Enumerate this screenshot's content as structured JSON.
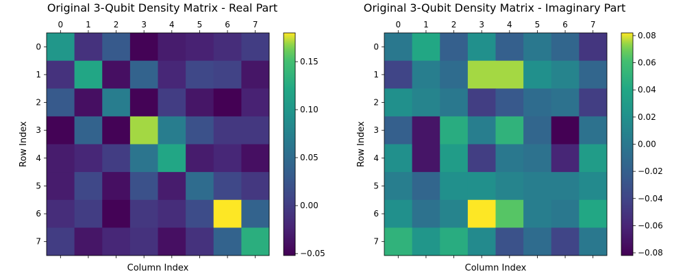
{
  "chart_data": [
    {
      "type": "heatmap",
      "title": "Original 3-Qubit Density Matrix - Real Part",
      "xlabel": "Column Index",
      "ylabel": "Row Index",
      "x_ticks": [
        "0",
        "1",
        "2",
        "3",
        "4",
        "5",
        "6",
        "7"
      ],
      "y_ticks": [
        "0",
        "1",
        "2",
        "3",
        "4",
        "5",
        "6",
        "7"
      ],
      "colormap": "viridis",
      "vmin": -0.052,
      "vmax": 0.18,
      "colorbar_ticks": [
        -0.05,
        0.0,
        0.05,
        0.1,
        0.15
      ],
      "colorbar_tick_labels": [
        "−0.05",
        "0.00",
        "0.05",
        "0.10",
        "0.15"
      ],
      "values": [
        [
          0.1,
          -0.01,
          0.03,
          -0.05,
          -0.03,
          -0.025,
          -0.015,
          0.0
        ],
        [
          -0.01,
          0.12,
          -0.04,
          0.04,
          -0.02,
          0.01,
          0.005,
          -0.035
        ],
        [
          0.03,
          -0.04,
          0.07,
          -0.05,
          0.0,
          -0.035,
          -0.052,
          -0.025
        ],
        [
          -0.05,
          0.04,
          -0.05,
          0.17,
          0.07,
          0.02,
          -0.005,
          -0.005
        ],
        [
          -0.03,
          -0.02,
          0.0,
          0.06,
          0.12,
          -0.03,
          -0.02,
          -0.04
        ],
        [
          -0.03,
          0.01,
          -0.04,
          0.02,
          -0.03,
          0.05,
          0.01,
          -0.005
        ],
        [
          -0.015,
          0.0,
          -0.05,
          -0.005,
          -0.015,
          0.015,
          0.18,
          0.04
        ],
        [
          0.0,
          -0.035,
          -0.02,
          -0.01,
          -0.04,
          -0.01,
          0.04,
          0.13
        ]
      ]
    },
    {
      "type": "heatmap",
      "title": "Original 3-Qubit Density Matrix - Imaginary Part",
      "xlabel": "Column Index",
      "ylabel": "Row Index",
      "x_ticks": [
        "0",
        "1",
        "2",
        "3",
        "4",
        "5",
        "6",
        "7"
      ],
      "y_ticks": [
        "0",
        "1",
        "2",
        "3",
        "4",
        "5",
        "6",
        "7"
      ],
      "colormap": "viridis",
      "vmin": -0.082,
      "vmax": 0.082,
      "colorbar_ticks": [
        -0.08,
        -0.06,
        -0.04,
        -0.02,
        0.0,
        0.02,
        0.04,
        0.06,
        0.08
      ],
      "colorbar_tick_labels": [
        "−0.08",
        "−0.06",
        "−0.04",
        "−0.02",
        "0.00",
        "0.02",
        "0.04",
        "0.06",
        "0.08"
      ],
      "values": [
        [
          0.0,
          0.04,
          -0.02,
          0.02,
          -0.02,
          0.0,
          -0.015,
          -0.05
        ],
        [
          -0.04,
          0.005,
          -0.01,
          0.075,
          0.075,
          0.02,
          0.01,
          -0.015
        ],
        [
          0.02,
          0.01,
          0.0,
          -0.045,
          -0.025,
          -0.01,
          -0.005,
          -0.045
        ],
        [
          -0.02,
          -0.07,
          0.045,
          0.005,
          0.05,
          -0.015,
          -0.082,
          -0.005
        ],
        [
          0.02,
          -0.07,
          0.03,
          -0.045,
          0.0,
          -0.005,
          -0.06,
          0.03
        ],
        [
          0.005,
          -0.015,
          0.02,
          0.02,
          0.01,
          0.005,
          0.005,
          0.015
        ],
        [
          0.02,
          -0.005,
          0.01,
          0.082,
          0.065,
          0.005,
          0.0,
          0.04
        ],
        [
          0.05,
          0.025,
          0.045,
          0.015,
          -0.03,
          -0.01,
          -0.04,
          0.0
        ]
      ]
    }
  ]
}
